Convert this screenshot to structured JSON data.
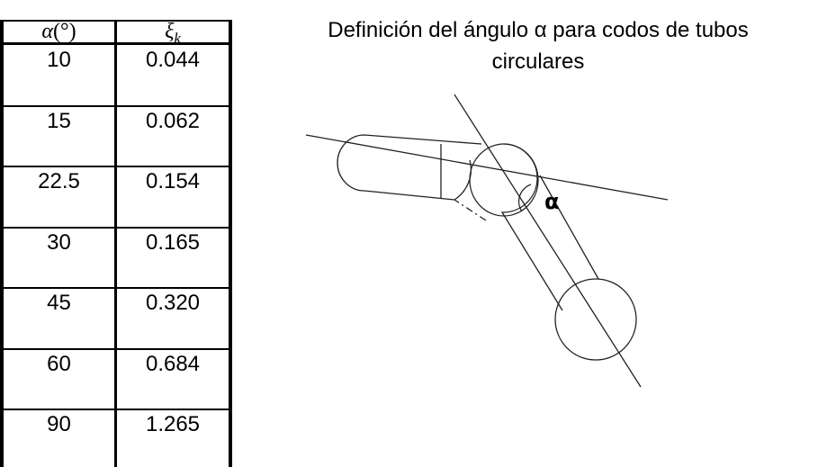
{
  "table": {
    "headers": [
      {
        "symbol": "α",
        "unit": "(°)"
      },
      {
        "symbol": "ξ",
        "subscript": "k"
      }
    ],
    "rows": [
      [
        "10",
        "0.044"
      ],
      [
        "15",
        "0.062"
      ],
      [
        "22.5",
        "0.154"
      ],
      [
        "30",
        "0.165"
      ],
      [
        "45",
        "0.320"
      ],
      [
        "60",
        "0.684"
      ],
      [
        "90",
        "1.265"
      ]
    ]
  },
  "figure": {
    "caption_line1": "Definición del ángulo α para codos de tubos",
    "caption_line2": "circulares",
    "angle_label": "α"
  }
}
